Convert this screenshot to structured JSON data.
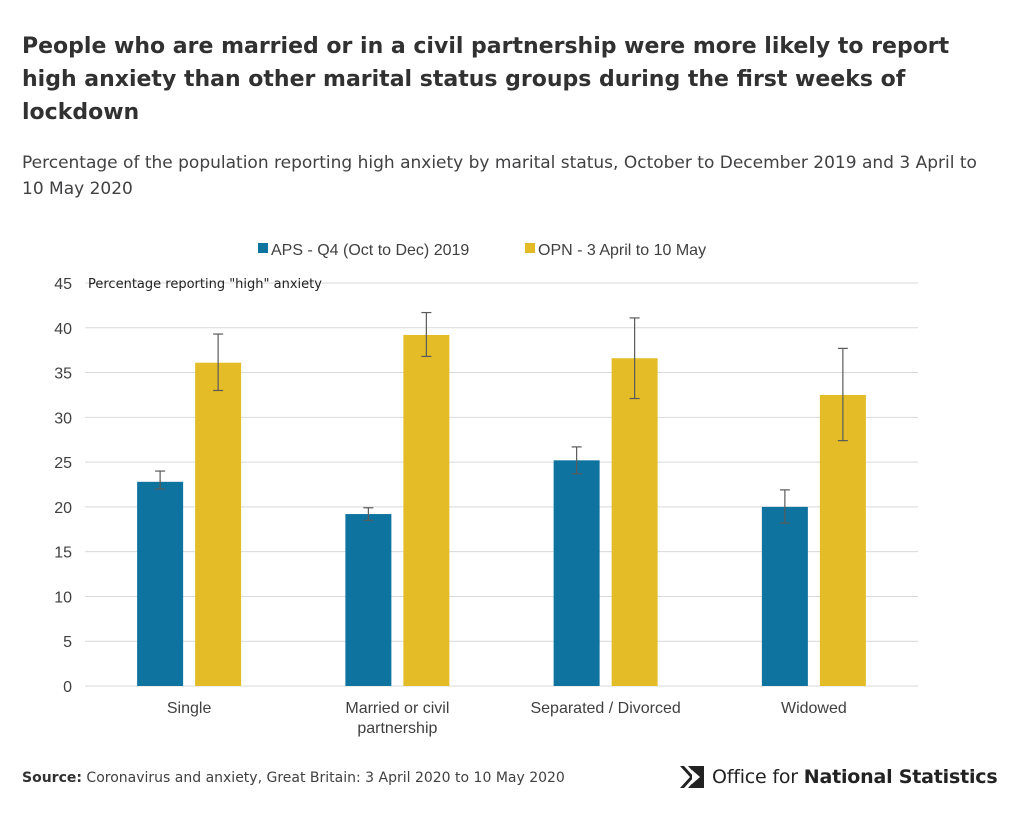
{
  "title": "People who are married or in a civil partnership were more likely to report high anxiety than other marital status groups during the first weeks of lockdown",
  "subtitle": "Percentage of the population reporting high anxiety by marital status, October to December 2019 and 3 April to 10 May 2020",
  "source": {
    "label": "Source:",
    "text": "Coronavirus and anxiety, Great Britain: 3 April 2020 to 10 May 2020"
  },
  "logo": {
    "prefix": "Office for ",
    "bold": "National Statistics"
  },
  "colors": {
    "aps": "#0F73A0",
    "opn": "#E3BC27",
    "grid": "#D9D9D9",
    "error": "#5a5a5a"
  },
  "chart_data": {
    "type": "bar",
    "title": "People who are married or in a civil partnership were more likely to report high anxiety than other marital status groups during the first weeks of lockdown",
    "ylabel": "Percentage reporting \"high\" anxiety",
    "xlabel": "",
    "ylim": [
      0,
      45
    ],
    "yticks": [
      0,
      5,
      10,
      15,
      20,
      25,
      30,
      35,
      40,
      45
    ],
    "grid": true,
    "legend_position": "top",
    "categories": [
      [
        "Single"
      ],
      [
        "Married or civil",
        "partnership"
      ],
      [
        "Separated / Divorced"
      ],
      [
        "Widowed"
      ]
    ],
    "series": [
      {
        "name": "APS - Q4 (Oct to Dec) 2019",
        "values": [
          22.8,
          19.2,
          25.2,
          20.0
        ],
        "error_low": [
          22.0,
          18.5,
          23.7,
          18.2
        ],
        "error_high": [
          24.0,
          19.9,
          26.7,
          21.9
        ]
      },
      {
        "name": "OPN - 3 April to 10 May",
        "values": [
          36.1,
          39.2,
          36.6,
          32.5
        ],
        "error_low": [
          33.0,
          36.8,
          32.1,
          27.4
        ],
        "error_high": [
          39.3,
          41.7,
          41.1,
          37.7
        ]
      }
    ]
  }
}
